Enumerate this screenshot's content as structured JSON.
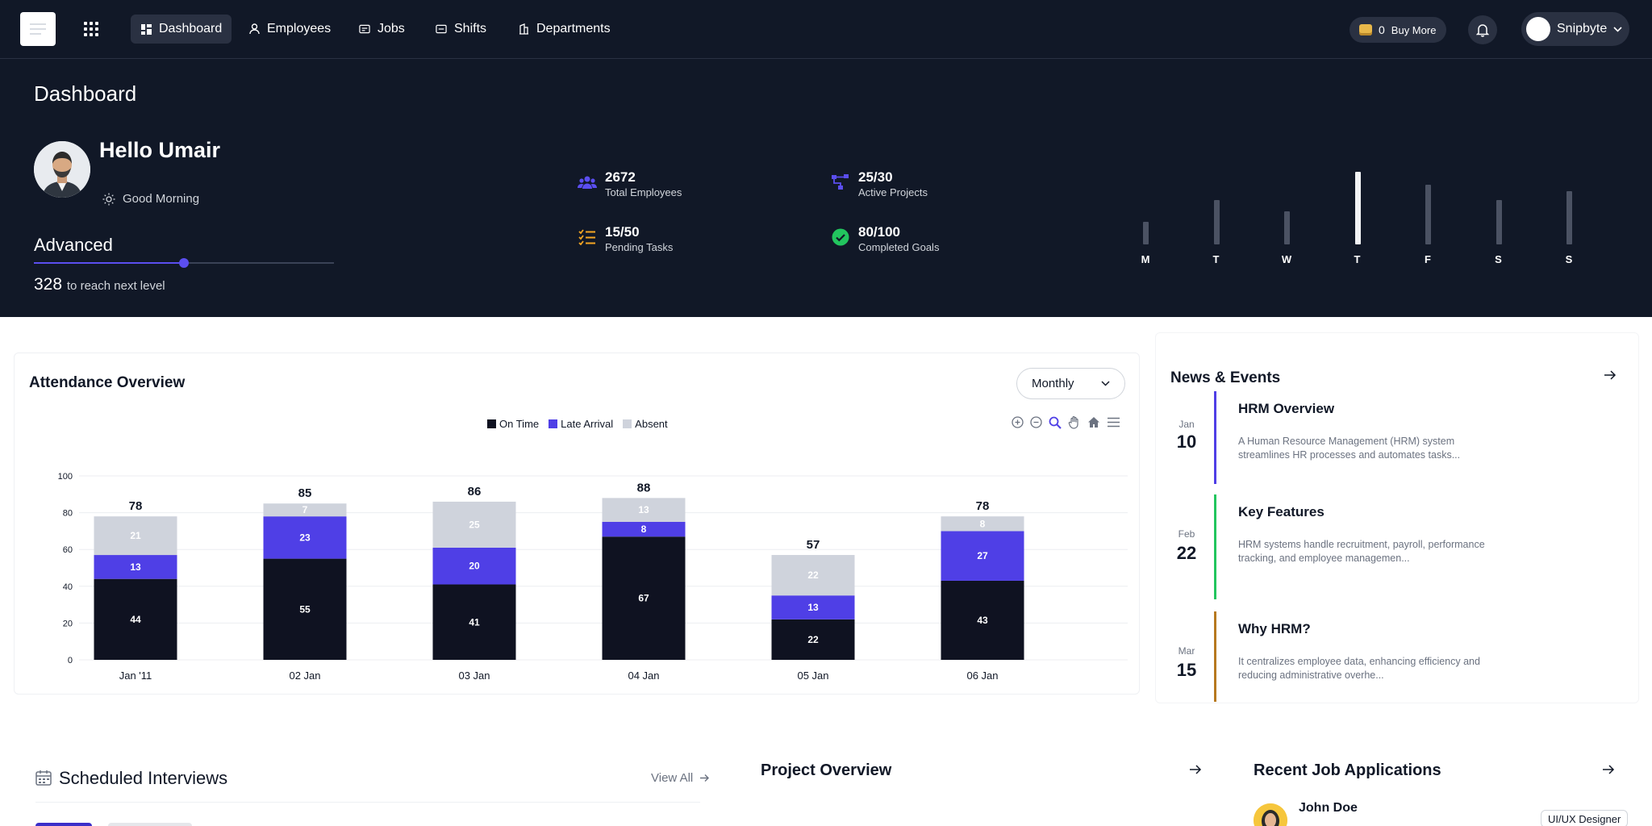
{
  "nav": {
    "items": [
      {
        "label": "Dashboard",
        "icon": "dashboard-icon",
        "active": true
      },
      {
        "label": "Employees",
        "icon": "person-icon",
        "active": false
      },
      {
        "label": "Jobs",
        "icon": "jobs-icon",
        "active": false
      },
      {
        "label": "Shifts",
        "icon": "shifts-icon",
        "active": false
      },
      {
        "label": "Departments",
        "icon": "building-icon",
        "active": false
      }
    ],
    "credits": {
      "count": "0",
      "label": "Buy More"
    },
    "user_name": "Snipbyte"
  },
  "hero": {
    "title": "Dashboard",
    "greeting_name": "Hello Umair",
    "greeting_time": "Good Morning",
    "level": "Advanced",
    "level_progress": 0.5,
    "points": "328",
    "points_label": "to reach next level",
    "stats": [
      {
        "value": "2672",
        "label": "Total Employees",
        "icon": "people-icon",
        "color": "#5b4ef0"
      },
      {
        "value": "25/30",
        "label": "Active Projects",
        "icon": "project-icon",
        "color": "#5b4ef0"
      },
      {
        "value": "15/50",
        "label": "Pending Tasks",
        "icon": "tasks-icon",
        "color": "#f5a623"
      },
      {
        "value": "80/100",
        "label": "Completed Goals",
        "icon": "check-circle-icon",
        "color": "#22c55e"
      }
    ],
    "week": {
      "days": [
        "M",
        "T",
        "W",
        "T",
        "F",
        "S",
        "S"
      ],
      "values": [
        0.3,
        0.6,
        0.45,
        0.98,
        0.8,
        0.6,
        0.72
      ],
      "highlight_index": 3
    }
  },
  "attendance": {
    "title": "Attendance Overview",
    "period": "Monthly",
    "chart_data": {
      "type": "bar",
      "stacked": true,
      "categories": [
        "Jan '11",
        "02 Jan",
        "03 Jan",
        "04 Jan",
        "05 Jan",
        "06 Jan"
      ],
      "series": [
        {
          "name": "On Time",
          "color": "#0f1221",
          "values": [
            44,
            55,
            41,
            67,
            22,
            43
          ]
        },
        {
          "name": "Late Arrival",
          "color": "#4f3fe6",
          "values": [
            13,
            23,
            20,
            8,
            13,
            27
          ]
        },
        {
          "name": "Absent",
          "color": "#cfd3dc",
          "values": [
            21,
            7,
            25,
            13,
            22,
            8
          ]
        }
      ],
      "totals": [
        78,
        85,
        86,
        88,
        57,
        78
      ],
      "ylim": [
        0,
        100
      ],
      "yticks": [
        "0",
        "20",
        "40",
        "60",
        "80",
        "100"
      ],
      "grid": true,
      "legend": "top-center"
    }
  },
  "news": {
    "title": "News & Events",
    "events": [
      {
        "month": "Jan",
        "day": "10",
        "title": "HRM Overview",
        "desc": "A Human Resource Management (HRM) system streamlines HR processes and automates tasks...",
        "color": "#4f3fe6"
      },
      {
        "month": "Feb",
        "day": "22",
        "title": "Key Features",
        "desc": "HRM systems handle recruitment, payroll, performance tracking, and employee managemen...",
        "color": "#22c55e"
      },
      {
        "month": "Mar",
        "day": "15",
        "title": "Why HRM?",
        "desc": "It centralizes employee data, enhancing efficiency and reducing administrative overhe...",
        "color": "#b7791f"
      }
    ]
  },
  "bottom": {
    "scheduled_title": "Scheduled Interviews",
    "view_all": "View All",
    "project_title": "Project Overview",
    "recent_title": "Recent Job Applications",
    "applicant_name": "John Doe",
    "applicant_role": "UI/UX Designer"
  }
}
